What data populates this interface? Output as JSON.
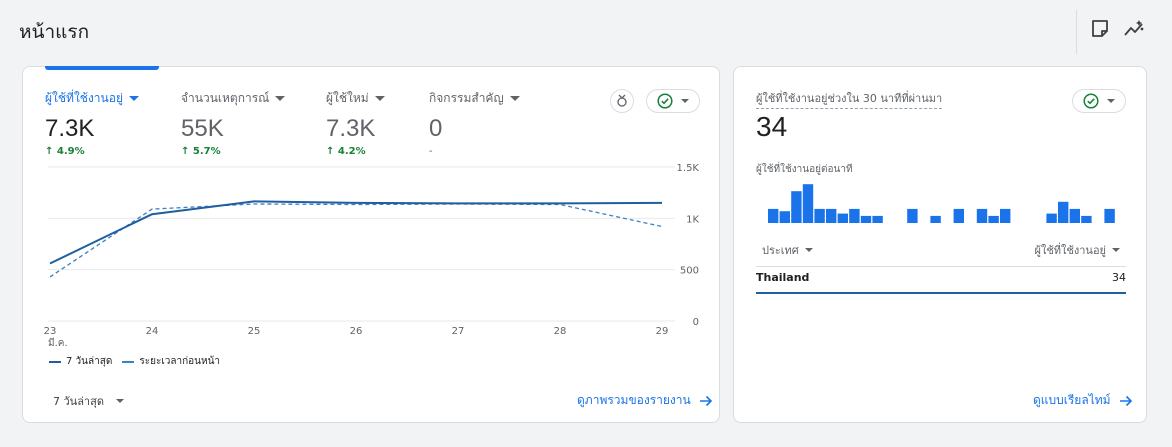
{
  "page": {
    "title": "หน้าแรก"
  },
  "toolbar": {
    "icons": [
      "note-icon",
      "insights-icon"
    ]
  },
  "metrics": [
    {
      "label": "ผู้ใช้ที่ใช้งานอยู่",
      "value": "7.3K",
      "change": "↑ 4.9%",
      "active": true
    },
    {
      "label": "จำนวนเหตุการณ์",
      "value": "55K",
      "change": "↑ 5.7%",
      "active": false
    },
    {
      "label": "ผู้ใช้ใหม่",
      "value": "7.3K",
      "change": "↑ 4.2%",
      "active": false
    },
    {
      "label": "กิจกรรมสำคัญ",
      "value": "0",
      "change": "-",
      "active": false
    }
  ],
  "chart_data": {
    "type": "line",
    "x": [
      "23",
      "24",
      "25",
      "26",
      "27",
      "28",
      "29"
    ],
    "x_sublabel": "มี.ค.",
    "y_ticks": [
      "0",
      "500",
      "1K",
      "1.5K"
    ],
    "ylim": [
      0,
      1500
    ],
    "y_axis_side": "right",
    "series": [
      {
        "name": "7 วันล่าสุด",
        "style": "solid",
        "color": "#1f5fa0",
        "values": [
          560,
          1040,
          1165,
          1150,
          1145,
          1145,
          1150
        ]
      },
      {
        "name": "ระยะเวลาก่อนหน้า",
        "style": "dashed",
        "color": "#3d80c4",
        "values": [
          430,
          1090,
          1140,
          1135,
          1140,
          1135,
          920
        ]
      }
    ],
    "grid": true,
    "legend_position": "bottom-left"
  },
  "main_footer": {
    "range_label": "7 วันล่าสุด",
    "report_link": "ดูภาพรวมของรายงาน"
  },
  "realtime": {
    "label": "ผู้ใช้ที่ใช้งานอยู่ช่วงใน 30 นาทีที่ผ่านมา",
    "value": "34",
    "per_minute_label": "ผู้ใช้ที่ใช้งานอยู่ต่อนาที",
    "per_minute_values": [
      1.2,
      1,
      2.7,
      3.3,
      1.2,
      1.2,
      0.8,
      1.2,
      0.6,
      0.6,
      0,
      0,
      1.2,
      0,
      0.6,
      0,
      1.2,
      0,
      1.2,
      0.6,
      1.2,
      0,
      0,
      0,
      0.8,
      1.8,
      1.2,
      0.6,
      0,
      1.2
    ],
    "table": {
      "col_country": "ประเทศ",
      "col_users": "ผู้ใช้ที่ใช้งานอยู่",
      "rows": [
        {
          "country": "Thailand",
          "users": "34"
        }
      ]
    },
    "realtime_link": "ดูแบบเรียลไทม์"
  },
  "colors": {
    "accent": "#1a73e8",
    "positive": "#188038",
    "status_ok": "#188038"
  }
}
